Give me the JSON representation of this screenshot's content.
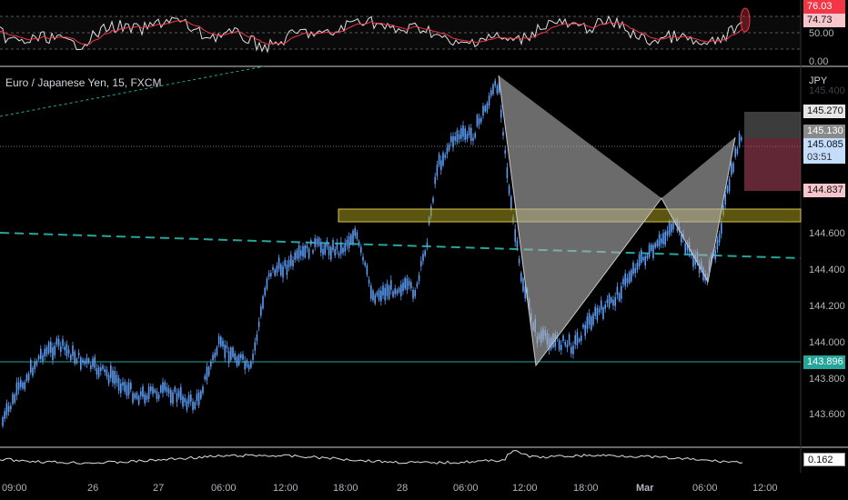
{
  "title": "Euro / Japanese Yen, 15, FXCM",
  "currency": "JPY",
  "price_axis": {
    "ticks": [
      "145.400",
      "144.600",
      "144.400",
      "144.200",
      "144.000",
      "143.800",
      "143.600"
    ]
  },
  "rsi_axis": {
    "ticks": [
      "50.00",
      "0.00"
    ]
  },
  "time_axis": {
    "labels": [
      "09:00",
      "26",
      "27",
      "06:00",
      "12:00",
      "18:00",
      "28",
      "06:00",
      "12:00",
      "18:00",
      "Mar",
      "06:00",
      "12:00"
    ]
  },
  "badges": {
    "rsi_high": "76.03",
    "rsi_value": "74.73",
    "take_profit": "145.270",
    "upper": "145.130",
    "current_price": "145.085",
    "countdown": "03:51",
    "stop": "144.837",
    "support": "143.896",
    "volume_value": "0.162"
  },
  "colors": {
    "background": "#000000",
    "candle": "#5b9cf6",
    "rsi_line": "#e0e0e0",
    "rsi_ma": "#f23645",
    "support_line": "#26a69a",
    "trend_line": "#26a69a",
    "zone": "#a89a20",
    "pattern": "#b2b2b2",
    "profit_box": "#787878",
    "loss_box": "#b3475e"
  },
  "chart_data": {
    "type": "candlestick",
    "symbol": "EUR/JPY",
    "timeframe": "15",
    "price_range": [
      143.5,
      145.4
    ],
    "pattern_points": [
      {
        "x": "28 09:00",
        "y": 145.37
      },
      {
        "x": "28 13:00",
        "y": 143.9
      },
      {
        "x": "Mar 00:00",
        "y": 144.8
      },
      {
        "x": "Mar 05:00",
        "y": 144.32
      },
      {
        "x": "Mar 07:30",
        "y": 145.08
      }
    ],
    "zone": [
      144.68,
      144.75
    ],
    "support_level": 143.896,
    "current_price": 145.085,
    "take_profit": 145.27,
    "stop_loss": 144.837
  }
}
